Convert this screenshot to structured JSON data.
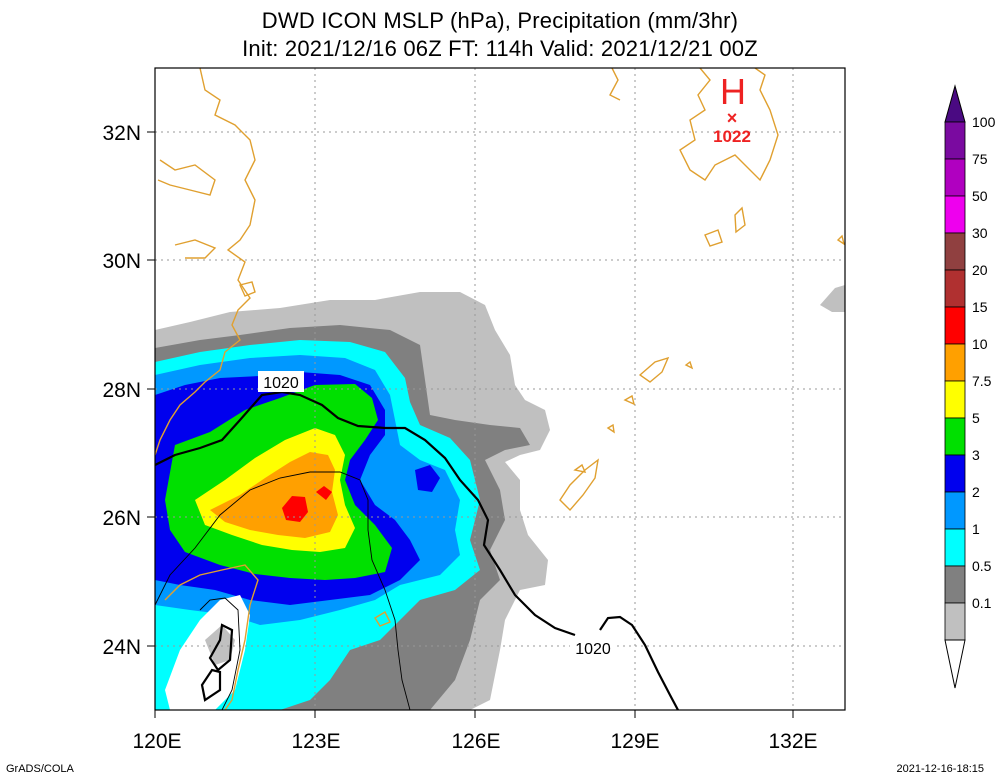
{
  "header": {
    "title_line1": "DWD ICON MSLP (hPa), Precipitation (mm/3hr)",
    "title_line2": "Init: 2021/12/16 06Z  FT: 114h  Valid: 2021/12/21 00Z"
  },
  "map": {
    "lon_labels": [
      "120E",
      "123E",
      "126E",
      "129E",
      "132E"
    ],
    "lat_labels": [
      "32N",
      "30N",
      "28N",
      "26N",
      "24N"
    ],
    "isobar_labels": [
      "1020",
      "1020"
    ],
    "high_center": {
      "symbol": "H",
      "marker": "×",
      "value": "1022",
      "color": "#ee2222"
    }
  },
  "legend": {
    "labels": [
      "100",
      "75",
      "50",
      "30",
      "20",
      "15",
      "10",
      "7.5",
      "5",
      "3",
      "2",
      "1",
      "0.5",
      "0.1"
    ],
    "colors": {
      "top_triangle": "#4a0a82",
      "c100": "#7a0aa0",
      "c75": "#b000c0",
      "c50": "#ee00ee",
      "c30": "#904040",
      "c20": "#b03030",
      "c15": "#ff0000",
      "c10": "#ffa000",
      "c7_5": "#ffff00",
      "c5": "#00e000",
      "c3": "#0000ee",
      "c2": "#0098ff",
      "c1": "#00ffff",
      "c0_5": "#808080",
      "c0_1": "#c0c0c0",
      "bottom_triangle": "#ffffff"
    }
  },
  "footer": {
    "left": "GrADS/COLA",
    "right": "2021-12-16-18:15"
  }
}
